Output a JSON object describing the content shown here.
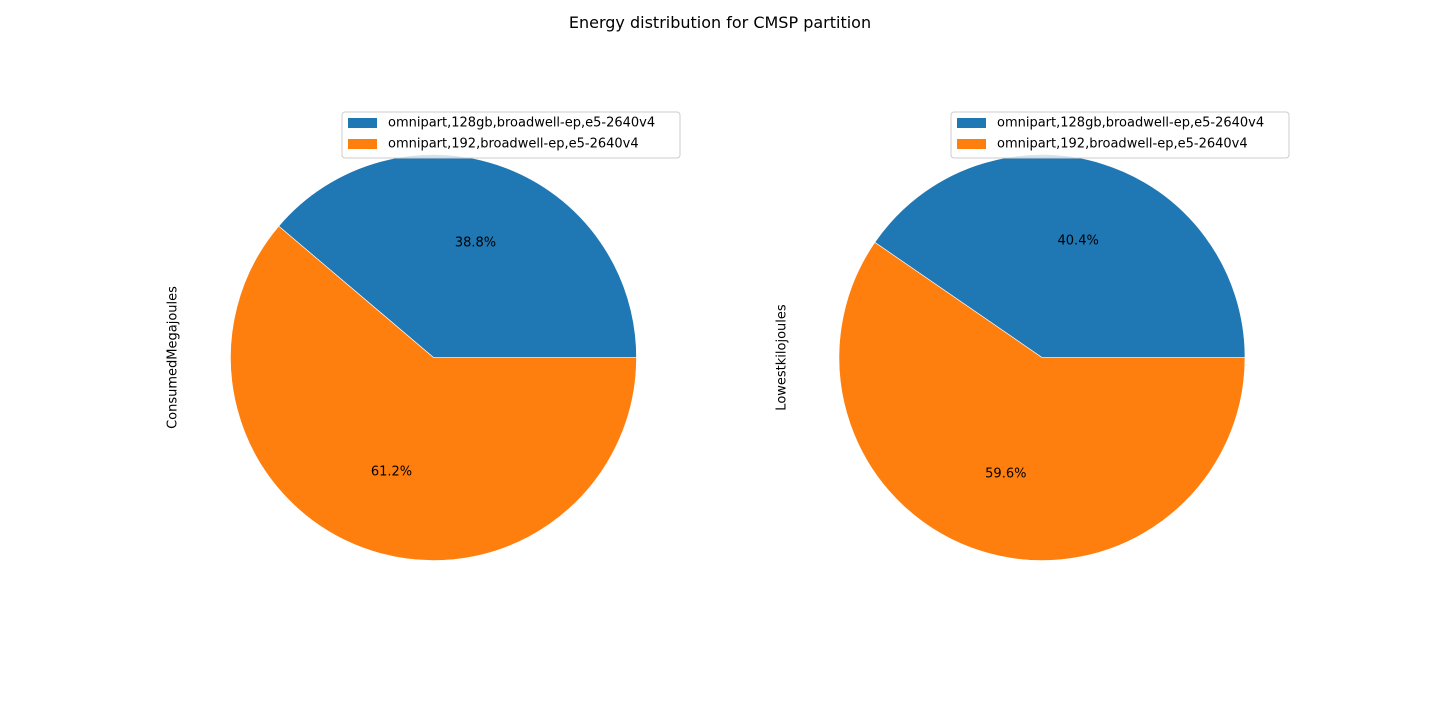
{
  "suptitle": "Energy distribution for CMSP partition",
  "colors": {
    "series0": "#1f77b4",
    "series1": "#ff7f0e"
  },
  "chart_data": [
    {
      "type": "pie",
      "ylabel": "ConsumedMegajoules",
      "labels": [
        "omnipart,128gb,broadwell-ep,e5-2640v4",
        "omnipart,192,broadwell-ep,e5-2640v4"
      ],
      "values": [
        38.8,
        61.2
      ],
      "value_labels": [
        "38.8%",
        "61.2%"
      ],
      "legend": "top-right"
    },
    {
      "type": "pie",
      "ylabel": "Lowestkilojoules",
      "labels": [
        "omnipart,128gb,broadwell-ep,e5-2640v4",
        "omnipart,192,broadwell-ep,e5-2640v4"
      ],
      "values": [
        40.4,
        59.6
      ],
      "value_labels": [
        "40.4%",
        "59.6%"
      ],
      "legend": "top-right"
    }
  ]
}
